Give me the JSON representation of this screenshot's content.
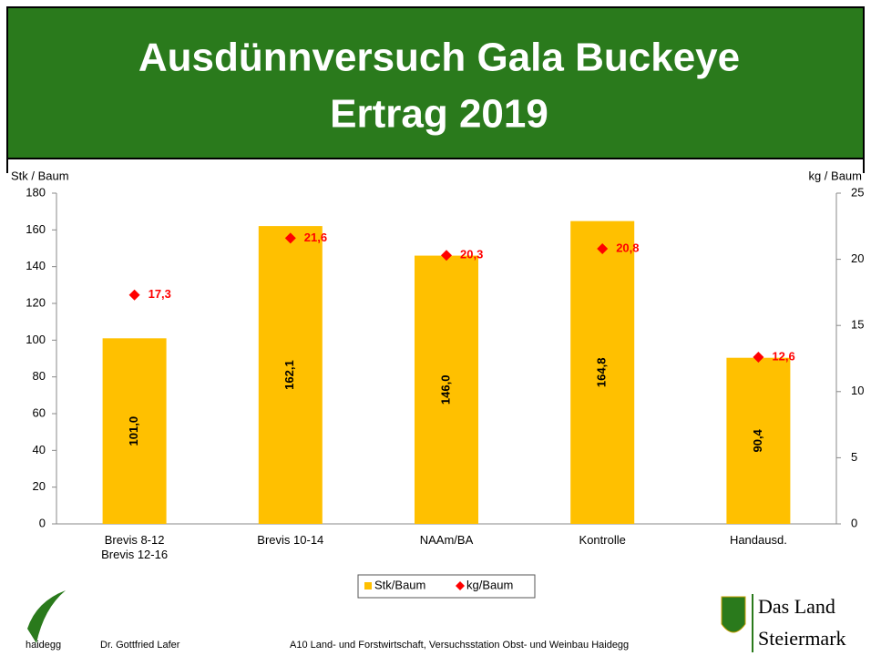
{
  "header": {
    "title": "Ausdünnversuch Gala Buckeye",
    "subtitle": "Ertrag 2019"
  },
  "chart_data": {
    "type": "bar",
    "ylabel": "Stk / Baum",
    "y2label": "kg / Baum",
    "categories": [
      "Brevis 8-12\nBrevis 12-16",
      "Brevis 10-14",
      "NAAm/BA",
      "Kontrolle",
      "Handausd."
    ],
    "series": [
      {
        "name": "Stk/Baum",
        "color": "#ffc000",
        "values": [
          101.0,
          162.1,
          146.0,
          164.8,
          90.4
        ],
        "value_labels": [
          "101,0",
          "162,1",
          "146,0",
          "164,8",
          "90,4"
        ]
      },
      {
        "name": "kg/Baum",
        "type": "scatter",
        "axis": "y2",
        "color": "#ff0000",
        "values": [
          17.3,
          21.6,
          20.3,
          20.8,
          12.6
        ],
        "value_labels": [
          "17,3",
          "21,6",
          "20,3",
          "20,8",
          "12,6"
        ]
      }
    ],
    "ylim": [
      0,
      180
    ],
    "yticks": [
      0,
      20,
      40,
      60,
      80,
      100,
      120,
      140,
      160,
      180
    ],
    "y2lim": [
      0,
      25
    ],
    "y2ticks": [
      0,
      5,
      10,
      15,
      20,
      25
    ],
    "legend": "bottom"
  },
  "footer": {
    "logo_text": "haidegg",
    "author": "Dr. Gottfried Lafer",
    "institution": "A10 Land- und Forstwirtschaft, Versuchsstation Obst- und Weinbau Haidegg",
    "brand_line1": "Das Land",
    "brand_line2": "Steiermark"
  }
}
